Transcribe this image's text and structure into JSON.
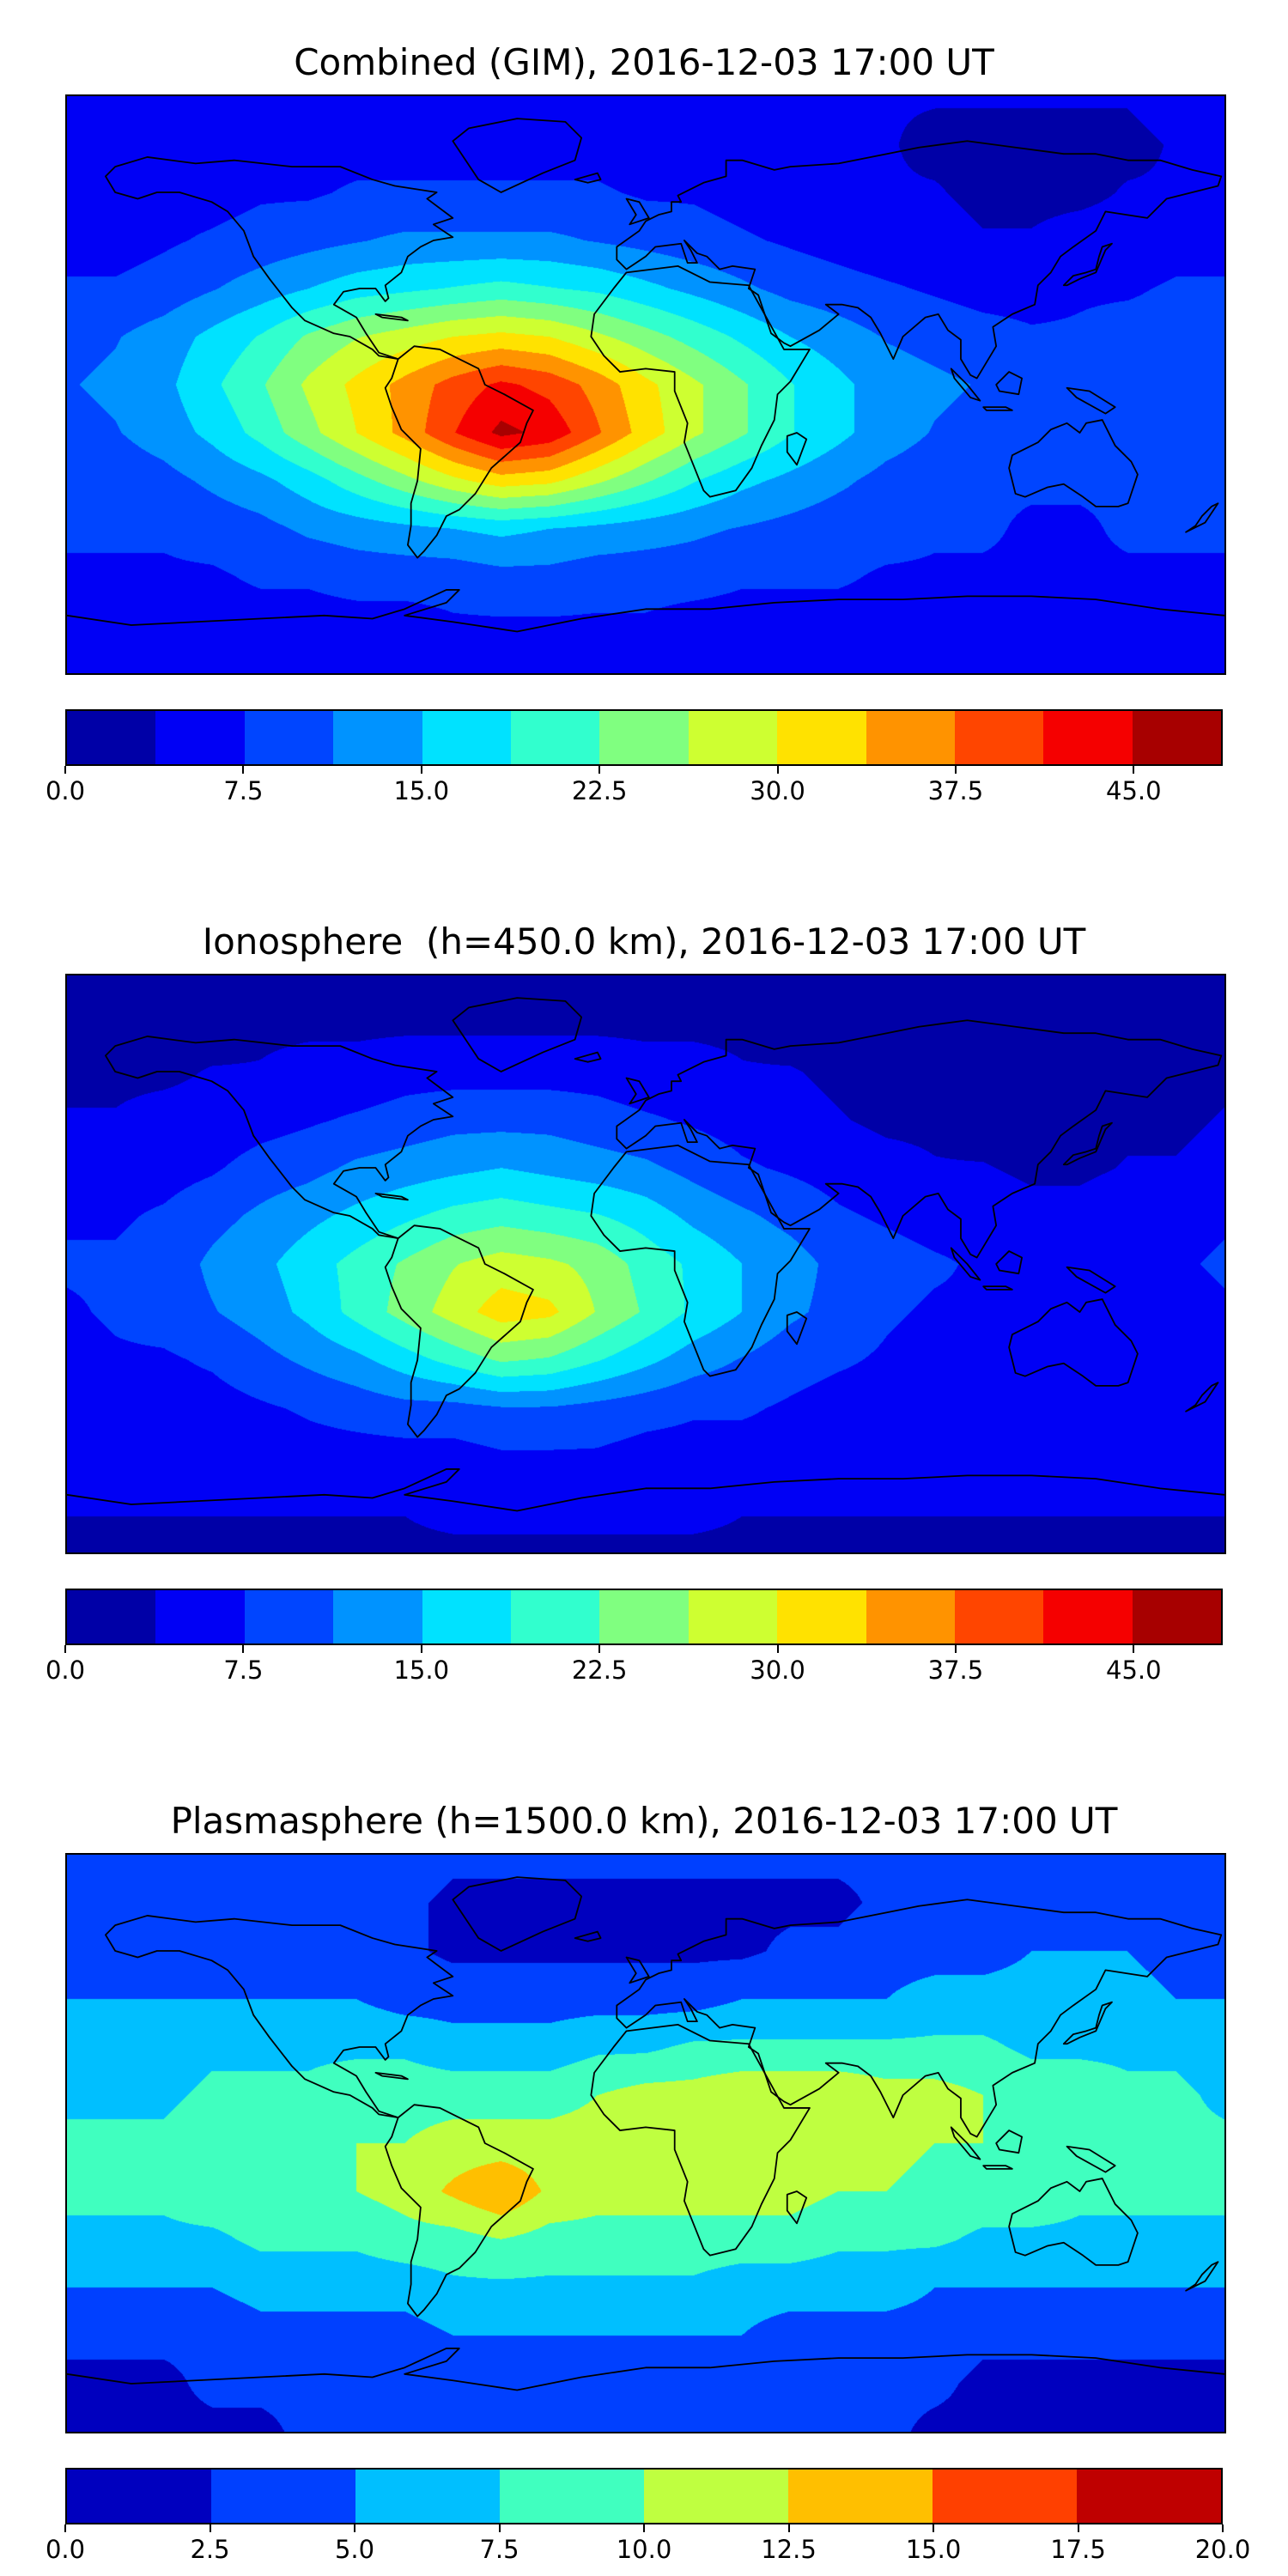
{
  "page": {
    "background": "#ffffff",
    "accent_black": "#000000"
  },
  "chart_data": [
    {
      "type": "heatmap",
      "title": "Combined (GIM), 2016-12-03 17:00 UT",
      "projection": "equirectangular",
      "lon_range": [
        -180,
        180
      ],
      "lat_range": [
        -90,
        90
      ],
      "grid_lons": [
        -180,
        -165,
        -150,
        -135,
        -120,
        -105,
        -90,
        -75,
        -60,
        -45,
        -30,
        -15,
        0,
        15,
        30,
        45,
        60,
        75,
        90,
        105,
        120,
        135,
        150,
        165,
        180
      ],
      "grid_lats": [
        90,
        75,
        60,
        45,
        30,
        15,
        0,
        -15,
        -30,
        -45,
        -60,
        -75,
        -90
      ],
      "values": [
        [
          5,
          5,
          5,
          5,
          5,
          5,
          5,
          5,
          5,
          5,
          5,
          5,
          5,
          4,
          4,
          4,
          4,
          4,
          4,
          4,
          4,
          4,
          4,
          5,
          5
        ],
        [
          5,
          5,
          5,
          5,
          6,
          6,
          6,
          6,
          6,
          6,
          6,
          6,
          5,
          5,
          5,
          4,
          4,
          4,
          3,
          3,
          3,
          3,
          3,
          4,
          5
        ],
        [
          5,
          5,
          6,
          6,
          7,
          7,
          8,
          8,
          8,
          8,
          8,
          8,
          7,
          7,
          6,
          5,
          5,
          4,
          4,
          3,
          3,
          3,
          4,
          4,
          5
        ],
        [
          6,
          6,
          7,
          8,
          9,
          10,
          11,
          12,
          12,
          12,
          12,
          11,
          10,
          9,
          8,
          7,
          6,
          5,
          5,
          4,
          4,
          5,
          5,
          6,
          6
        ],
        [
          8,
          8,
          9,
          11,
          13,
          15,
          17,
          18,
          19,
          20,
          19,
          18,
          16,
          14,
          12,
          10,
          9,
          8,
          7,
          6,
          6,
          7,
          7,
          8,
          8
        ],
        [
          10,
          11,
          13,
          16,
          19,
          23,
          26,
          28,
          30,
          31,
          30,
          27,
          24,
          21,
          18,
          15,
          13,
          11,
          10,
          9,
          8,
          8,
          9,
          9,
          10
        ],
        [
          11,
          12,
          14,
          18,
          22,
          27,
          31,
          35,
          39,
          42,
          40,
          36,
          31,
          27,
          23,
          19,
          16,
          13,
          12,
          11,
          10,
          10,
          10,
          11,
          11
        ],
        [
          10,
          11,
          13,
          16,
          20,
          25,
          30,
          35,
          41,
          46,
          44,
          38,
          32,
          27,
          23,
          19,
          16,
          13,
          11,
          10,
          9,
          9,
          9,
          10,
          10
        ],
        [
          9,
          9,
          10,
          12,
          14,
          17,
          21,
          25,
          29,
          32,
          31,
          27,
          23,
          19,
          16,
          14,
          12,
          10,
          9,
          8,
          8,
          8,
          8,
          9,
          9
        ],
        [
          8,
          8,
          8,
          9,
          10,
          12,
          13,
          14,
          15,
          16,
          15,
          14,
          13,
          12,
          11,
          10,
          9,
          9,
          8,
          8,
          7,
          7,
          8,
          8,
          8
        ],
        [
          7,
          7,
          7,
          7,
          8,
          8,
          9,
          9,
          9,
          10,
          10,
          9,
          9,
          9,
          8,
          8,
          8,
          7,
          7,
          7,
          7,
          7,
          7,
          7,
          7
        ],
        [
          5,
          5,
          5,
          6,
          6,
          6,
          6,
          6,
          7,
          7,
          7,
          7,
          7,
          6,
          6,
          6,
          6,
          6,
          5,
          5,
          5,
          5,
          5,
          5,
          5
        ],
        [
          4,
          4,
          4,
          4,
          4,
          4,
          4,
          4,
          4,
          4,
          4,
          4,
          4,
          4,
          4,
          4,
          4,
          4,
          4,
          4,
          4,
          4,
          4,
          4,
          4
        ]
      ],
      "colormap": "jet",
      "levels": {
        "min": 0,
        "step": 3.75,
        "count": 13
      },
      "colorbar_ticks": [
        "0.0",
        "7.5",
        "15.0",
        "22.5",
        "30.0",
        "37.5",
        "45.0"
      ],
      "colorbar_tick_values": [
        0,
        7.5,
        15,
        22.5,
        30,
        37.5,
        45
      ]
    },
    {
      "type": "heatmap",
      "title": "Ionosphere  (h=450.0 km), 2016-12-03 17:00 UT",
      "projection": "equirectangular",
      "lon_range": [
        -180,
        180
      ],
      "lat_range": [
        -90,
        90
      ],
      "grid_lons": [
        -180,
        -165,
        -150,
        -135,
        -120,
        -105,
        -90,
        -75,
        -60,
        -45,
        -30,
        -15,
        0,
        15,
        30,
        45,
        60,
        75,
        90,
        105,
        120,
        135,
        150,
        165,
        180
      ],
      "grid_lats": [
        90,
        75,
        60,
        45,
        30,
        15,
        0,
        -15,
        -30,
        -45,
        -60,
        -75,
        -90
      ],
      "values": [
        [
          2,
          2,
          2,
          2,
          2,
          2,
          2,
          2,
          2,
          2,
          2,
          2,
          2,
          2,
          2,
          2,
          2,
          2,
          2,
          2,
          2,
          2,
          2,
          2,
          2
        ],
        [
          2,
          2,
          2,
          2,
          3,
          3,
          3,
          3,
          3,
          3,
          3,
          3,
          3,
          3,
          3,
          2,
          2,
          2,
          2,
          2,
          1,
          1,
          1,
          2,
          2
        ],
        [
          3,
          3,
          3,
          4,
          4,
          5,
          5,
          6,
          6,
          6,
          6,
          6,
          5,
          5,
          4,
          4,
          3,
          2,
          2,
          2,
          1,
          1,
          2,
          2,
          3
        ],
        [
          4,
          4,
          5,
          5,
          6,
          7,
          8,
          9,
          10,
          10,
          10,
          9,
          8,
          7,
          6,
          5,
          4,
          3,
          3,
          2,
          2,
          2,
          3,
          3,
          4
        ],
        [
          5,
          6,
          6,
          7,
          9,
          10,
          12,
          13,
          14,
          15,
          14,
          13,
          12,
          10,
          8,
          7,
          6,
          5,
          4,
          4,
          3,
          3,
          4,
          4,
          5
        ],
        [
          7,
          7,
          8,
          10,
          12,
          14,
          16,
          18,
          20,
          21,
          20,
          19,
          17,
          14,
          12,
          10,
          8,
          7,
          6,
          6,
          5,
          5,
          6,
          6,
          7
        ],
        [
          8,
          8,
          9,
          12,
          14,
          17,
          20,
          23,
          26,
          28,
          27,
          25,
          21,
          18,
          15,
          13,
          10,
          9,
          8,
          7,
          7,
          7,
          7,
          7,
          8
        ],
        [
          7,
          8,
          9,
          11,
          13,
          16,
          20,
          24,
          28,
          32,
          31,
          26,
          22,
          18,
          15,
          12,
          10,
          8,
          7,
          7,
          6,
          6,
          6,
          6,
          7
        ],
        [
          6,
          7,
          7,
          8,
          10,
          12,
          14,
          17,
          20,
          23,
          22,
          19,
          16,
          13,
          11,
          9,
          8,
          7,
          6,
          6,
          5,
          5,
          5,
          6,
          6
        ],
        [
          6,
          6,
          6,
          6,
          7,
          8,
          9,
          10,
          10,
          11,
          11,
          10,
          9,
          8,
          8,
          7,
          6,
          6,
          6,
          5,
          5,
          5,
          5,
          5,
          6
        ],
        [
          5,
          5,
          5,
          5,
          5,
          6,
          6,
          6,
          6,
          7,
          7,
          7,
          6,
          6,
          6,
          6,
          6,
          5,
          5,
          5,
          5,
          5,
          5,
          5,
          5
        ],
        [
          4,
          4,
          4,
          4,
          4,
          4,
          4,
          4,
          5,
          5,
          5,
          5,
          5,
          5,
          4,
          4,
          4,
          4,
          4,
          4,
          4,
          4,
          4,
          4,
          4
        ],
        [
          3,
          3,
          3,
          3,
          3,
          3,
          3,
          3,
          3,
          3,
          3,
          3,
          3,
          3,
          3,
          3,
          3,
          3,
          3,
          3,
          3,
          3,
          3,
          3,
          3
        ]
      ],
      "colormap": "jet",
      "levels": {
        "min": 0,
        "step": 3.75,
        "count": 13
      },
      "colorbar_ticks": [
        "0.0",
        "7.5",
        "15.0",
        "22.5",
        "30.0",
        "37.5",
        "45.0"
      ],
      "colorbar_tick_values": [
        0,
        7.5,
        15,
        22.5,
        30,
        37.5,
        45
      ]
    },
    {
      "type": "heatmap",
      "title": "Plasmasphere (h=1500.0 km), 2016-12-03 17:00 UT",
      "projection": "equirectangular",
      "lon_range": [
        -180,
        180
      ],
      "lat_range": [
        -90,
        90
      ],
      "grid_lons": [
        -180,
        -165,
        -150,
        -135,
        -120,
        -105,
        -90,
        -75,
        -60,
        -45,
        -30,
        -15,
        0,
        15,
        30,
        45,
        60,
        75,
        90,
        105,
        120,
        135,
        150,
        165,
        180
      ],
      "grid_lats": [
        90,
        75,
        60,
        45,
        30,
        15,
        0,
        -15,
        -30,
        -45,
        -60,
        -75,
        -90
      ],
      "values": [
        [
          4,
          4,
          4,
          4,
          4,
          4,
          4,
          4,
          3,
          3,
          3,
          3,
          3,
          3,
          3,
          3,
          3,
          3,
          4,
          4,
          4,
          4,
          4,
          4,
          4
        ],
        [
          4,
          4,
          4,
          4,
          4,
          3,
          3,
          3,
          2,
          2,
          2,
          2,
          2,
          2,
          2,
          2,
          2,
          3,
          3,
          4,
          4,
          4,
          4,
          4,
          4
        ],
        [
          4,
          4,
          4,
          4,
          4,
          4,
          3,
          3,
          2,
          2,
          2,
          2,
          2,
          2,
          2,
          3,
          3,
          4,
          4,
          4,
          5,
          5,
          5,
          4,
          4
        ],
        [
          5,
          5,
          5,
          5,
          5,
          5,
          5,
          4,
          4,
          4,
          4,
          4,
          4,
          4,
          5,
          5,
          5,
          5,
          6,
          6,
          6,
          6,
          6,
          5,
          5
        ],
        [
          6,
          6,
          6,
          7,
          7,
          7,
          7,
          7,
          6,
          6,
          6,
          7,
          7,
          8,
          8,
          8,
          8,
          8,
          8,
          8,
          7,
          7,
          7,
          7,
          6
        ],
        [
          7,
          7,
          7,
          8,
          8,
          8,
          9,
          9,
          9,
          9,
          9,
          10,
          11,
          11,
          12,
          12,
          12,
          11,
          11,
          10,
          9,
          9,
          8,
          8,
          7
        ],
        [
          8,
          8,
          8,
          9,
          9,
          9,
          10,
          10,
          11,
          11,
          11,
          11,
          12,
          12,
          12,
          12,
          11,
          11,
          10,
          10,
          9,
          9,
          9,
          8,
          8
        ],
        [
          8,
          8,
          8,
          9,
          9,
          10,
          10,
          11,
          13,
          15,
          12,
          11,
          11,
          11,
          11,
          11,
          10,
          10,
          9,
          9,
          9,
          8,
          8,
          8,
          8
        ],
        [
          7,
          7,
          7,
          7,
          8,
          8,
          8,
          9,
          9,
          10,
          9,
          9,
          9,
          9,
          9,
          9,
          8,
          8,
          8,
          7,
          7,
          7,
          7,
          7,
          7
        ],
        [
          5,
          5,
          5,
          5,
          6,
          6,
          6,
          6,
          7,
          7,
          7,
          7,
          7,
          7,
          6,
          6,
          6,
          6,
          5,
          5,
          5,
          5,
          5,
          5,
          5
        ],
        [
          3,
          3,
          3,
          3,
          4,
          4,
          4,
          4,
          5,
          5,
          5,
          5,
          5,
          5,
          5,
          4,
          4,
          4,
          4,
          3,
          3,
          3,
          3,
          3,
          3
        ],
        [
          2,
          2,
          2,
          3,
          3,
          3,
          3,
          3,
          4,
          4,
          4,
          4,
          4,
          4,
          4,
          3,
          3,
          3,
          3,
          2,
          2,
          2,
          2,
          2,
          2
        ],
        [
          2,
          2,
          2,
          2,
          2,
          3,
          3,
          3,
          3,
          3,
          3,
          3,
          3,
          3,
          3,
          3,
          3,
          3,
          2,
          2,
          2,
          2,
          2,
          2,
          2
        ]
      ],
      "colormap": "jet",
      "levels": {
        "min": 0,
        "step": 2.5,
        "count": 8
      },
      "colorbar_ticks": [
        "0.0",
        "2.5",
        "5.0",
        "7.5",
        "10.0",
        "12.5",
        "15.0",
        "17.5",
        "20.0"
      ],
      "colorbar_tick_values": [
        0,
        2.5,
        5,
        7.5,
        10,
        12.5,
        15,
        17.5,
        20
      ]
    }
  ],
  "coastline_paths": [
    "M12,25 L15,30 22,32 28,30 35,30 45,33 50,36 55,42 58,50 63,57 70,66 74,70 83,74 88,75 95,79 97,81 103,82 97,80 93,74 90,69 83,65 86,61 91,60 96,60 99,64 100,63 99,59 104,55 106,50 110,47 114,45 120,44 114,40 120,38 112,32 115,30 102,28 95,26 85,22 70,22 52,20 40,21 25,19 15,22 Z",
    "M135,30 L128,26 126,23 120,14 125,10 140,7 155,8 160,13 158,20 148,24 Z",
    "M103,82 L108,78 116,79 120,81 128,85 130,90 136,93 145,98 143,102 141,108 132,116 127,124 122,129 118,131 115,137 111,142 109,144 106,140 107,134 107,127 109,120 110,110 104,104 101,97 99,91 101,88 Z",
    "M174,55 L190,53 200,58 212,59 223,79 231,79 225,89 221,93 220,101 216,109 213,116 208,123 200,125 198,123 192,108 193,102 189,92 189,86 180,85 172,86 167,81 163,75 164,68 170,60 Z",
    "M174,54 L171,51 171,47 178,42 180,39 184,37 188,36 188,33 191,33 190,31 198,27 205,25 205,20 210,20 220,23 225,22 240,21 255,18 265,16 280,14 295,16 310,18 320,18 330,20 340,20 350,23 359,25 358,28 350,30 342,32 336,38 323,36 320,42 313,47 309,50 306,55 302,59 301,65 294,68 288,72 289,78 283,88 281,87 278,82 278,76 274,73 271,68 267,69 260,75 257,82 253,74 250,69 246,66 241,65 236,65 240,68 234,73 225,78 223,77 219,74 215,62 212,60 214,54 207,53 203,54 199,50 196,49 192,45 194,48 196,52 193,52 191,46 183,47 180,50 Z",
    "M175,40 L177,37 174,32 178,33 181,38 Z",
    "M158,26 L165,24 166,26 162,27 Z",
    "M310,59 L313,56 317,55 320,54 321,50 322,47 325,46 323,48 320,55 315,57 311,59 Z",
    "M294,112 L293,116 295,124 298,125 305,122 310,121 316,125 320,128 327,128 330,127 333,118 331,114 326,109 322,101 317,102 315,105 311,102 306,104 302,108 Z",
    "M289,90 L293,86 297,88 296,93 290,92 Z",
    "M275,85 L280,90 284,95 281,94 276,88 Z",
    "M285,97 L292,97 294,98 286,98 Z",
    "M311,91 L318,92 326,97 323,99 314,94 Z",
    "M224,106 L227,105 230,107 227,115 224,111 Z",
    "M353,131 L356,128 358,127 354,133 348,136 351,134 Z",
    "M96,68 L104,69 106,70 98,69 Z",
    "M0,162 L20,165 40,164 60,163 80,162 95,163 105,160 118,154 122,154 118,158 105,162 120,164 140,167 160,163 180,160 200,160 220,158 240,157 260,157 280,156 300,156 320,157 340,160 360,162"
  ]
}
